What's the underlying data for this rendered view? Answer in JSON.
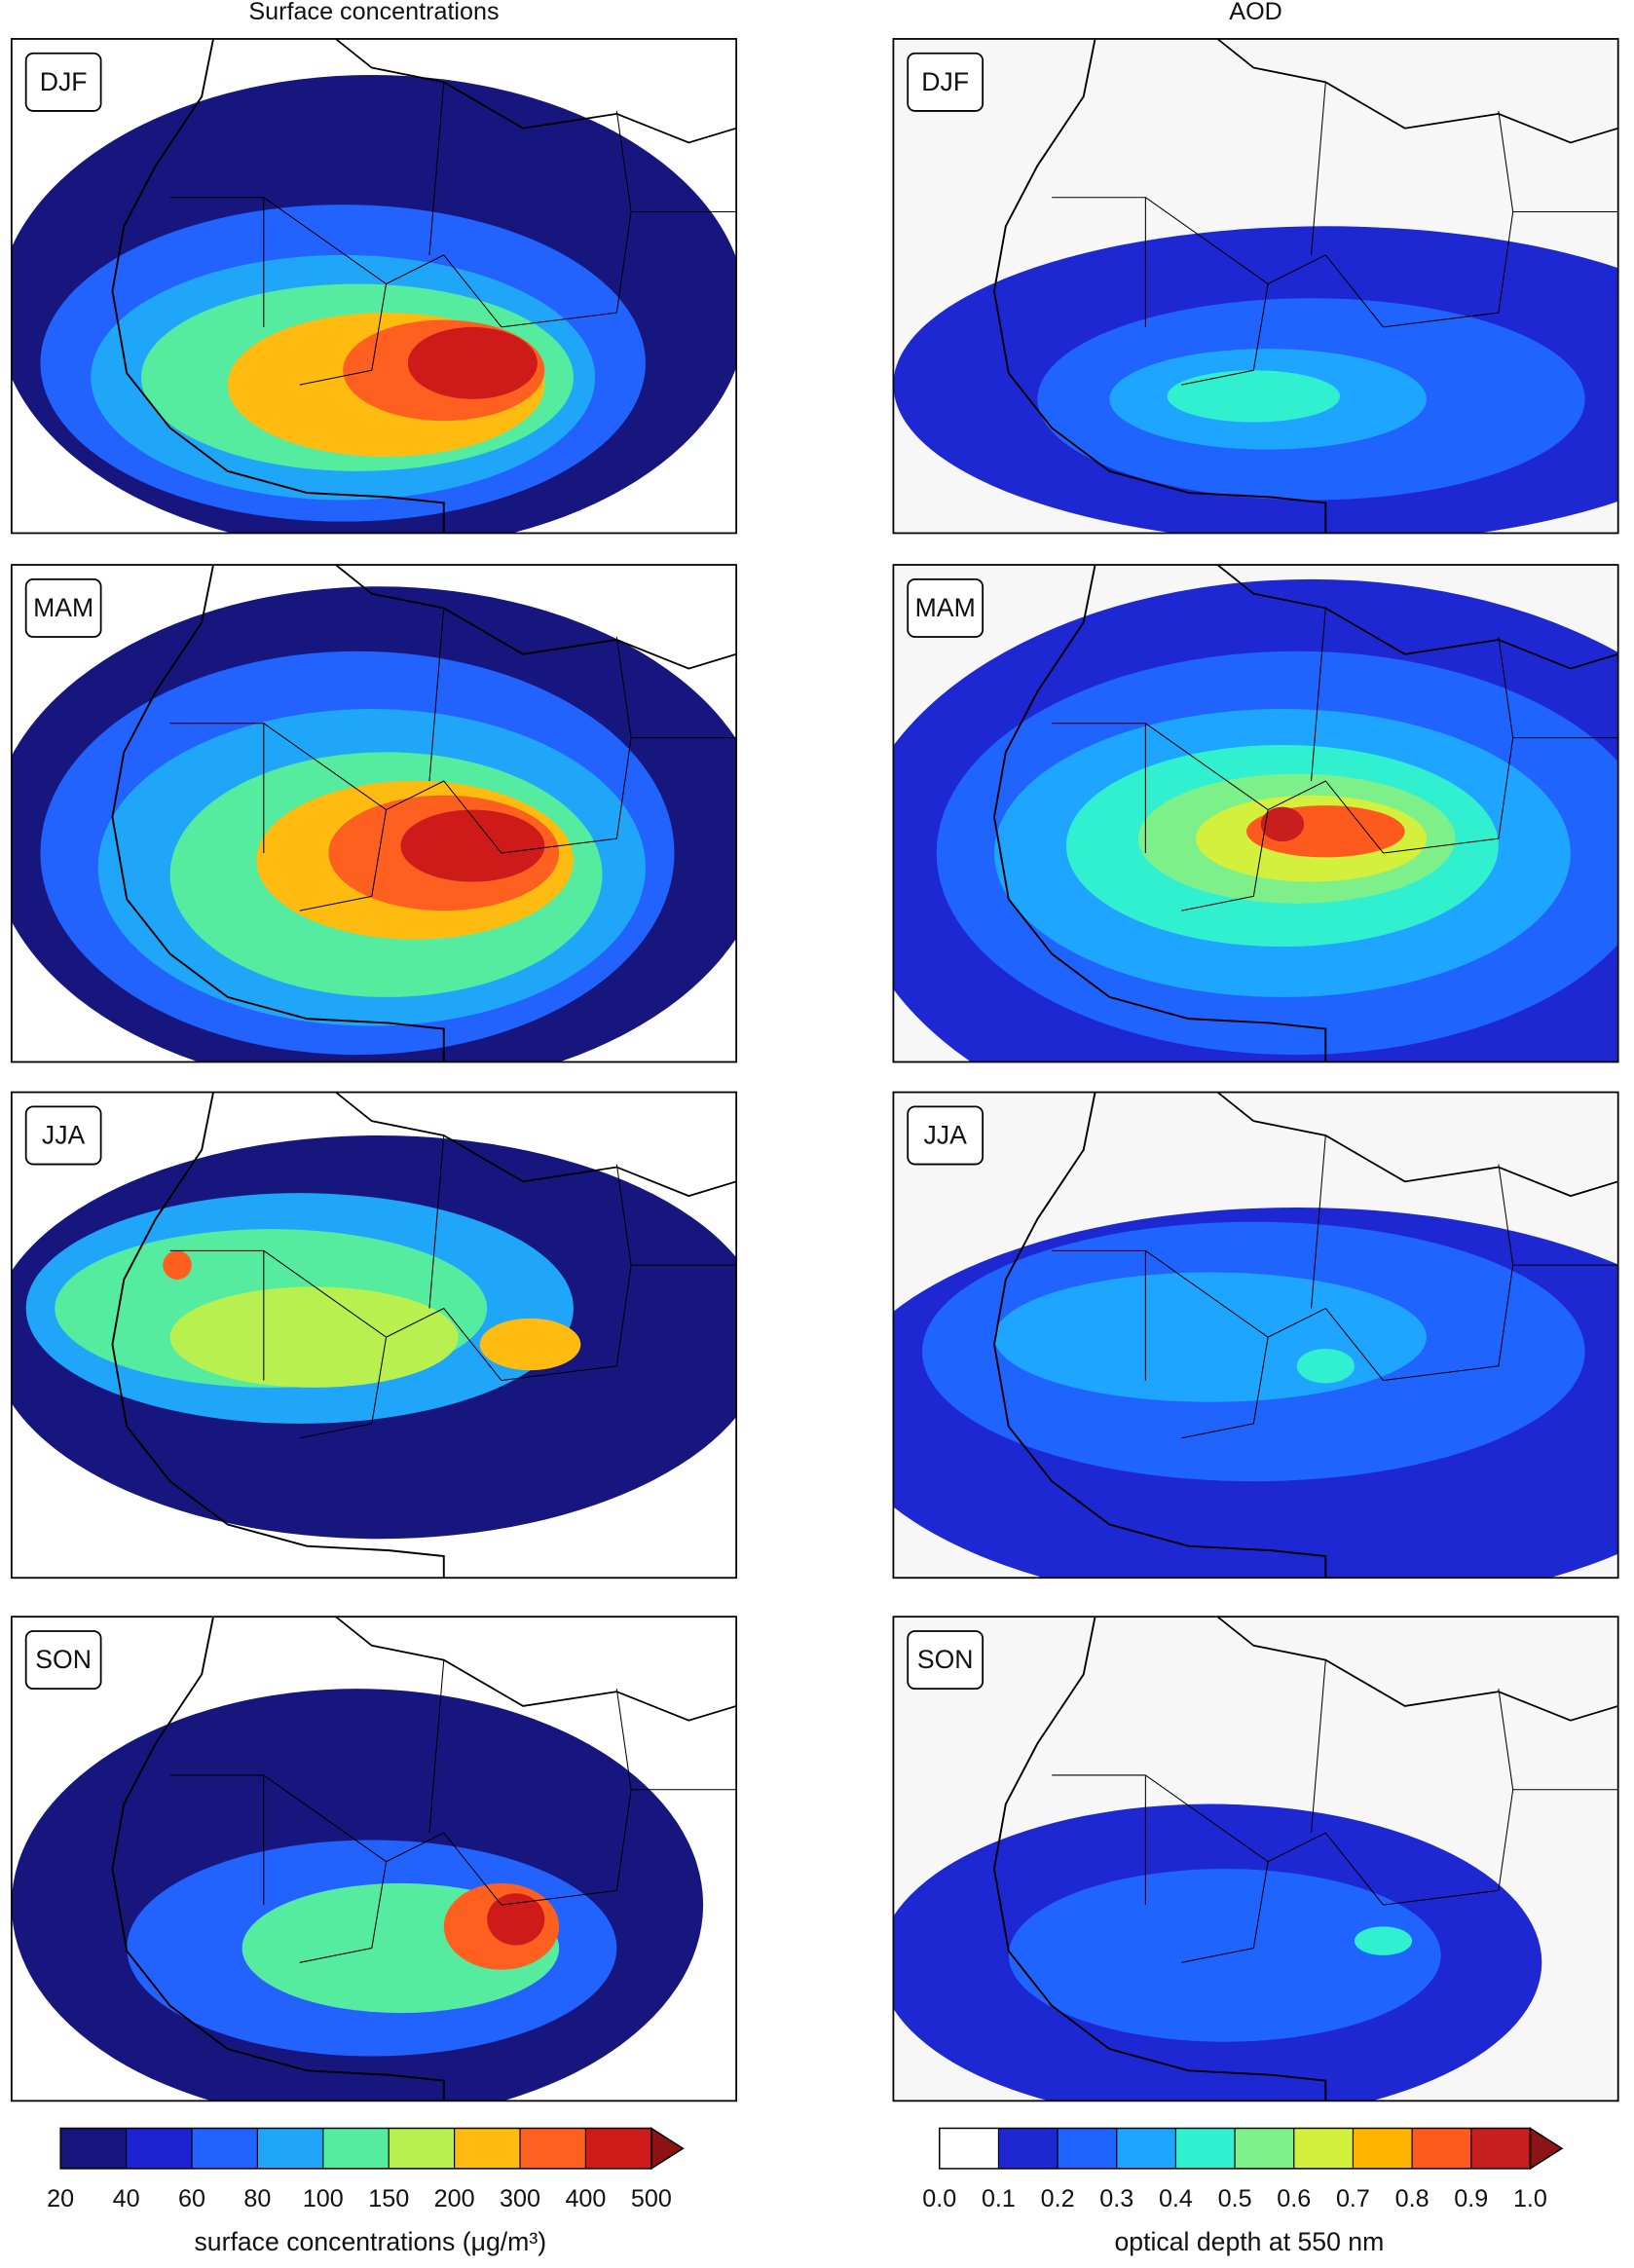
{
  "columns": [
    {
      "title": "Surface concentrations",
      "panels": [
        "DJF",
        "MAM",
        "JJA",
        "SON"
      ],
      "colorbar": {
        "ticks": [
          20,
          40,
          60,
          80,
          100,
          150,
          200,
          300,
          400,
          500
        ],
        "colors": [
          "#16167e",
          "#1f22d2",
          "#2262ff",
          "#1fa6f8",
          "#55eca0",
          "#b8f050",
          "#ffbb10",
          "#ff6020",
          "#cf1a1a"
        ],
        "extend_color": "#8e1212",
        "label": "surface concentrations (μg/m³)"
      }
    },
    {
      "title": "AOD",
      "panels": [
        "DJF",
        "MAM",
        "JJA",
        "SON"
      ],
      "colorbar": {
        "ticks": [
          "0.0",
          "0.1",
          "0.2",
          "0.3",
          "0.4",
          "0.5",
          "0.6",
          "0.7",
          "0.8",
          "0.9",
          "1.0"
        ],
        "colors": [
          "#ffffff",
          "#1e28d2",
          "#2064ff",
          "#1ea5ff",
          "#30f0d0",
          "#7ef08a",
          "#d2f03c",
          "#ffb400",
          "#ff5a1e",
          "#c81e1e"
        ],
        "extend_color": "#8b1414",
        "label": "optical depth at 550 nm"
      }
    }
  ]
}
